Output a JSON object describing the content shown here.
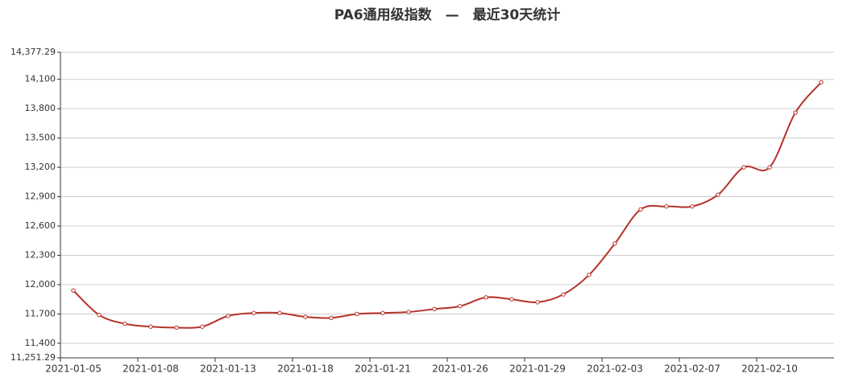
{
  "chart_data": {
    "type": "line",
    "title": "PA6通用级指数　—　最近30天统计",
    "categories": [
      "2021-01-05",
      null,
      null,
      "2021-01-08",
      null,
      null,
      "2021-01-13",
      null,
      null,
      "2021-01-18",
      null,
      null,
      "2021-01-21",
      null,
      null,
      "2021-01-26",
      null,
      null,
      "2021-01-29",
      null,
      null,
      "2021-02-03",
      null,
      null,
      "2021-02-07",
      null,
      null,
      "2021-02-10",
      null,
      null
    ],
    "values": [
      11940,
      11690,
      11600,
      11570,
      11560,
      11570,
      11680,
      11710,
      11710,
      11670,
      11660,
      11700,
      11710,
      11720,
      11750,
      11780,
      11870,
      11850,
      11820,
      11900,
      12100,
      12420,
      12770,
      12800,
      12800,
      12920,
      13200,
      13200,
      13760,
      14070
    ],
    "color": "#b5322a",
    "ylim": [
      11251.29,
      14377.29
    ],
    "yticks": [
      {
        "value": 11251.29,
        "label": "11,251.29"
      },
      {
        "value": 11400,
        "label": "11,400"
      },
      {
        "value": 11700,
        "label": "11,700"
      },
      {
        "value": 12000,
        "label": "12,000"
      },
      {
        "value": 12300,
        "label": "12,300"
      },
      {
        "value": 12600,
        "label": "12,600"
      },
      {
        "value": 12900,
        "label": "12,900"
      },
      {
        "value": 13200,
        "label": "13,200"
      },
      {
        "value": 13500,
        "label": "13,500"
      },
      {
        "value": 13800,
        "label": "13,800"
      },
      {
        "value": 14100,
        "label": "14,100"
      },
      {
        "value": 14377.29,
        "label": "14,377.29"
      }
    ],
    "grid": true
  }
}
